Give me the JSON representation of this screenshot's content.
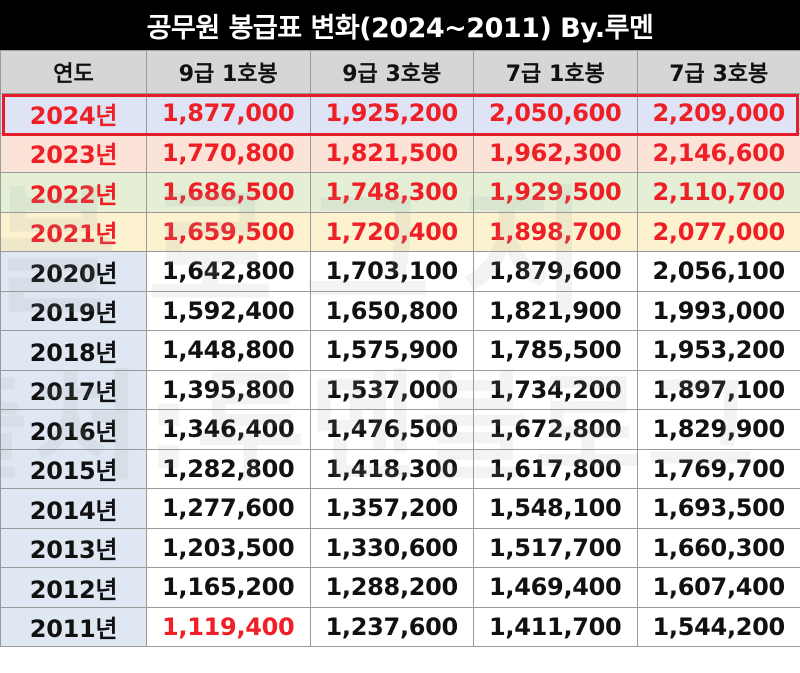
{
  "title": "공무원 봉급표 변화(2024~2011) By.루멘",
  "watermark": [
    "블로그지",
    "출처:루멘블로그"
  ],
  "colors": {
    "title_bg": "#000000",
    "header_bg": "#d6d6d6",
    "highlight_text": "#ef1f26",
    "row_2024_bg": "#dee3f6",
    "row_2023_bg": "#fbe3d8",
    "row_2022_bg": "#e4efd6",
    "row_2021_bg": "#fcf2cf",
    "year_cell_bg": "#dfe7f3",
    "box_2024": "#e51d2a"
  },
  "chart_data": {
    "type": "table",
    "title": "공무원 봉급표 변화(2024~2011) By.루멘",
    "columns": [
      "연도",
      "9급 1호봉",
      "9급 3호봉",
      "7급 1호봉",
      "7급 3호봉"
    ],
    "rows": [
      [
        "2024년",
        "1,877,000",
        "1,925,200",
        "2,050,600",
        "2,209,000"
      ],
      [
        "2023년",
        "1,770,800",
        "1,821,500",
        "1,962,300",
        "2,146,600"
      ],
      [
        "2022년",
        "1,686,500",
        "1,748,300",
        "1,929,500",
        "2,110,700"
      ],
      [
        "2021년",
        "1,659,500",
        "1,720,400",
        "1,898,700",
        "2,077,000"
      ],
      [
        "2020년",
        "1,642,800",
        "1,703,100",
        "1,879,600",
        "2,056,100"
      ],
      [
        "2019년",
        "1,592,400",
        "1,650,800",
        "1,821,900",
        "1,993,000"
      ],
      [
        "2018년",
        "1,448,800",
        "1,575,900",
        "1,785,500",
        "1,953,200"
      ],
      [
        "2017년",
        "1,395,800",
        "1,537,000",
        "1,734,200",
        "1,897,100"
      ],
      [
        "2016년",
        "1,346,400",
        "1,476,500",
        "1,672,800",
        "1,829,900"
      ],
      [
        "2015년",
        "1,282,800",
        "1,418,300",
        "1,617,800",
        "1,769,700"
      ],
      [
        "2014년",
        "1,277,600",
        "1,357,200",
        "1,548,100",
        "1,693,500"
      ],
      [
        "2013년",
        "1,203,500",
        "1,330,600",
        "1,517,700",
        "1,660,300"
      ],
      [
        "2012년",
        "1,165,200",
        "1,288,200",
        "1,469,400",
        "1,607,400"
      ],
      [
        "2011년",
        "1,119,400",
        "1,237,600",
        "1,411,700",
        "1,544,200"
      ]
    ],
    "highlighted_rows": [
      "2024년",
      "2023년",
      "2022년",
      "2021년"
    ],
    "boxed_row": "2024년",
    "red_cells": [
      [
        "2011년",
        "9급 1호봉"
      ]
    ]
  }
}
